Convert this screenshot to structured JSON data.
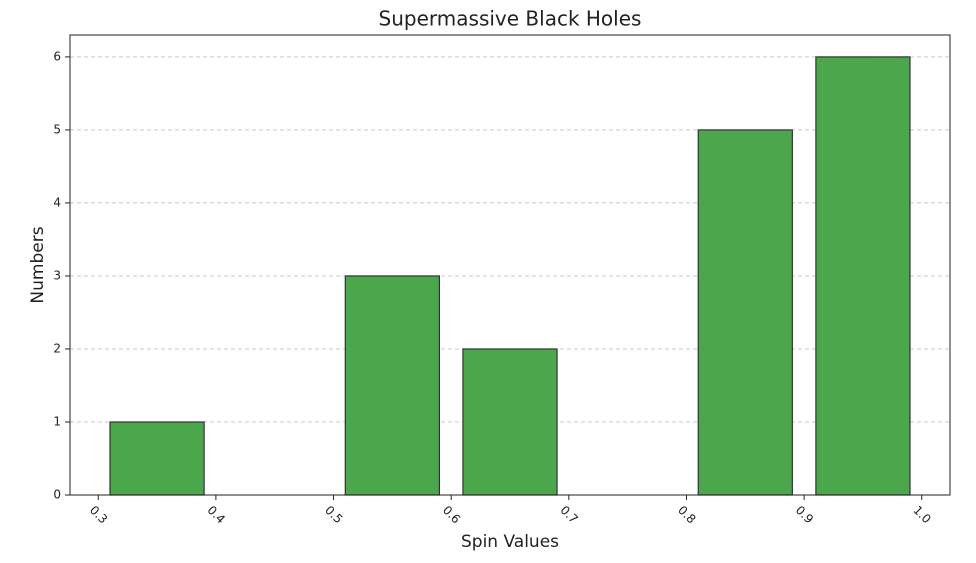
{
  "chart_data": {
    "type": "histogram",
    "title": "Supermassive Black Holes",
    "x_label": "Spin Values",
    "y_label": "Numbers",
    "bins": [
      0.3,
      0.4,
      0.5,
      0.6,
      0.7,
      0.8,
      0.9,
      1.0
    ],
    "values": [
      1,
      0,
      3,
      2,
      0,
      5,
      6
    ],
    "color": "#4ca64c",
    "edge_color": "#333333",
    "rwidth": 0.8,
    "xlim": [
      0.276,
      1.024
    ],
    "ylim": [
      0,
      6.3
    ],
    "xticks": [
      0.3,
      0.4,
      0.5,
      0.6,
      0.7,
      0.8,
      0.9,
      {
        "value": 1.0,
        "label": "1.0"
      }
    ],
    "yticks": [
      0,
      1,
      2,
      3,
      4,
      5,
      6
    ],
    "grid": true
  }
}
